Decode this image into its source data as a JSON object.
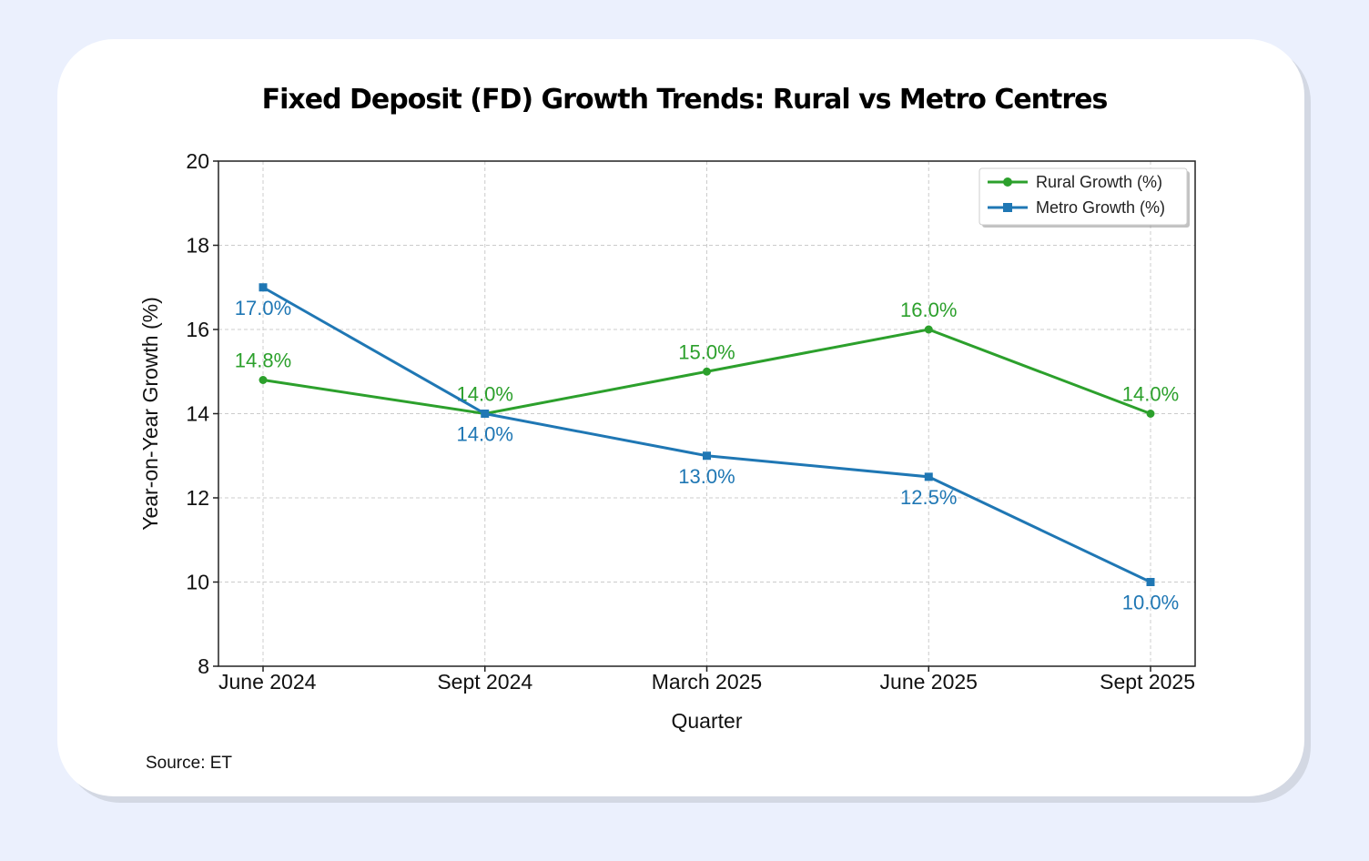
{
  "card": {
    "title": "Fixed Deposit (FD) Growth Trends: Rural vs Metro Centres",
    "source": "Source: ET"
  },
  "colors": {
    "background": "#ebf0fd",
    "card": "#ffffff",
    "rural": "#2ca02c",
    "metro": "#1f77b4",
    "grid": "#cccccc"
  },
  "chart_data": {
    "type": "line",
    "title": "Fixed Deposit (FD) Growth Trends: Rural vs Metro Centres",
    "xlabel": "Quarter",
    "ylabel": "Year-on-Year Growth (%)",
    "categories": [
      "June 2024",
      "Sept 2024",
      "March 2025",
      "June 2025",
      "Sept 2025"
    ],
    "ylim": [
      8,
      20
    ],
    "yticks": [
      8,
      10,
      12,
      14,
      16,
      18,
      20
    ],
    "grid": true,
    "legend_position": "top-right",
    "series": [
      {
        "name": "Rural Growth (%)",
        "color": "#2ca02c",
        "marker": "circle",
        "values": [
          14.8,
          14.0,
          15.0,
          16.0,
          14.0
        ],
        "labels": [
          "14.8%",
          "14.0%",
          "15.0%",
          "16.0%",
          "14.0%"
        ],
        "label_position": "above"
      },
      {
        "name": "Metro Growth (%)",
        "color": "#1f77b4",
        "marker": "square",
        "values": [
          17.0,
          14.0,
          13.0,
          12.5,
          10.0
        ],
        "labels": [
          "17.0%",
          "14.0%",
          "13.0%",
          "12.5%",
          "10.0%"
        ],
        "label_position": "below"
      }
    ]
  }
}
